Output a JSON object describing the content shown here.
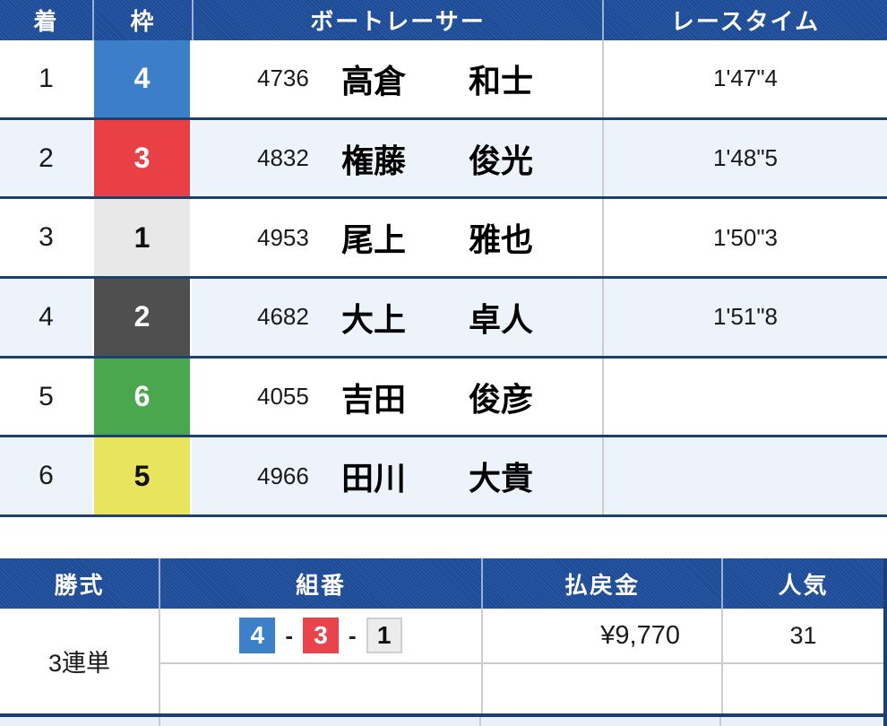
{
  "results_table": {
    "headers": {
      "place": "着",
      "frame": "枠",
      "racer": "ボートレーサー",
      "time": "レースタイム"
    },
    "rows": [
      {
        "place": "1",
        "frame": "4",
        "frame_bg": "#3d7ec9",
        "frame_fg": "#ffffff",
        "racer_no": "4736",
        "surname": "高倉",
        "given_name": "和士",
        "time": "1'47\"4"
      },
      {
        "place": "2",
        "frame": "3",
        "frame_bg": "#e94046",
        "frame_fg": "#ffffff",
        "racer_no": "4832",
        "surname": "権藤",
        "given_name": "俊光",
        "time": "1'48\"5"
      },
      {
        "place": "3",
        "frame": "1",
        "frame_bg": "#e8e8e8",
        "frame_fg": "#111111",
        "racer_no": "4953",
        "surname": "尾上",
        "given_name": "雅也",
        "time": "1'50\"3"
      },
      {
        "place": "4",
        "frame": "2",
        "frame_bg": "#4f4f4f",
        "frame_fg": "#ffffff",
        "racer_no": "4682",
        "surname": "大上",
        "given_name": "卓人",
        "time": "1'51\"8"
      },
      {
        "place": "5",
        "frame": "6",
        "frame_bg": "#4aa74e",
        "frame_fg": "#ffffff",
        "racer_no": "4055",
        "surname": "吉田",
        "given_name": "俊彦",
        "time": ""
      },
      {
        "place": "6",
        "frame": "5",
        "frame_bg": "#e9e45e",
        "frame_fg": "#111111",
        "racer_no": "4966",
        "surname": "田川",
        "given_name": "大貴",
        "time": ""
      }
    ]
  },
  "payout_table": {
    "headers": {
      "type": "勝式",
      "combo": "組番",
      "payout": "払戻金",
      "popularity": "人気"
    },
    "rows": [
      {
        "bet_type": "3連単",
        "combination": [
          {
            "num": "4",
            "bg": "#3b80c8",
            "fg": "#ffffff",
            "border": "#3b80c8"
          },
          {
            "num": "3",
            "bg": "#e9444b",
            "fg": "#ffffff",
            "border": "#e9444b"
          },
          {
            "num": "1",
            "bg": "#ececec",
            "fg": "#111111",
            "border": "#cfcfcf"
          }
        ],
        "separator": "-",
        "payout": "¥9,770",
        "popularity": "31"
      }
    ]
  },
  "colors": {
    "header_bg": "#1d4e9c",
    "row_border": "#1e4070",
    "alt_row_bg": "#edf3fa",
    "divider": "#cccccc"
  }
}
